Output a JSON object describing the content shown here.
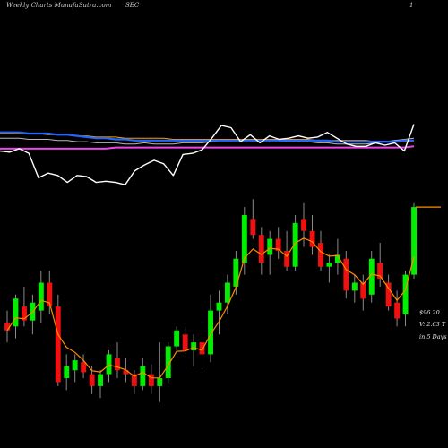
{
  "header": {
    "site": "Weekly Charts MunafaSutra.com",
    "ticker": "SEC",
    "period": "1"
  },
  "price_labels": {
    "price": "$96.20",
    "volume": "V: 2.63 Y",
    "days": "in 5 Days"
  },
  "colors": {
    "up": "#00ee00",
    "down": "#ee1111",
    "ema_short": "#ff8c00",
    "indicator_line": "#ffffff",
    "avg_blue": "#2266ff",
    "avg_magenta": "#ee44ee",
    "avg_orange": "#ffa000",
    "avg_grey": "#b8b8b8",
    "background": "#000000"
  },
  "chart_data": [
    {
      "type": "line",
      "title": "",
      "ylim": [
        0,
        100
      ],
      "series": [
        {
          "values": [
            55,
            54,
            57,
            53,
            32,
            36,
            34,
            28,
            34,
            33,
            28,
            29,
            28,
            26,
            38,
            43,
            47,
            44,
            34,
            52,
            53,
            56,
            66,
            77,
            75,
            63,
            69,
            62,
            68,
            65,
            66,
            68,
            66,
            67,
            71,
            66,
            61,
            59,
            59,
            62,
            60,
            62,
            55,
            78
          ]
        },
        {
          "values": [
            66,
            66,
            66,
            65,
            65,
            65,
            64,
            64,
            63,
            63,
            62,
            62,
            62,
            61,
            61,
            62,
            61,
            61,
            61,
            62,
            62,
            62,
            63,
            64,
            64,
            64,
            64,
            64,
            64,
            64,
            63,
            63,
            63,
            62,
            62,
            61,
            61,
            61,
            61,
            62,
            63,
            64,
            65,
            66
          ]
        },
        {
          "values": [
            57,
            57,
            57,
            57,
            57,
            57,
            57,
            57,
            57,
            57,
            57,
            57,
            58,
            58,
            58,
            58,
            58,
            58,
            58,
            58,
            58,
            58,
            58,
            58,
            58,
            58,
            58,
            58,
            58,
            58,
            58,
            58,
            58,
            58,
            58,
            58,
            58,
            58,
            58,
            58,
            58,
            58,
            58,
            59
          ]
        },
        {
          "values": [
            71,
            71,
            71,
            70,
            70,
            70,
            69,
            69,
            68,
            67,
            66,
            66,
            65,
            65,
            64,
            64,
            64,
            64,
            64,
            64,
            64,
            64,
            64,
            64,
            64,
            64,
            64,
            64,
            64,
            64,
            64,
            64,
            64,
            64,
            64,
            63,
            63,
            63,
            63,
            63,
            63,
            63,
            64,
            64
          ]
        },
        {
          "values": [
            70,
            70,
            70,
            70,
            70,
            69,
            69,
            69,
            68,
            68,
            67,
            67,
            67,
            66,
            66,
            66,
            66,
            66,
            65,
            65,
            65,
            65,
            65,
            65,
            65,
            65,
            65,
            65,
            65,
            65,
            65,
            65,
            65,
            64,
            64,
            64,
            64,
            64,
            64,
            63,
            63,
            63,
            63,
            63
          ]
        }
      ]
    },
    {
      "type": "candlestick",
      "title": "",
      "ylim": [
        0,
        100
      ],
      "candles": [
        [
          46,
          52,
          36,
          42
        ],
        [
          44,
          60,
          38,
          58
        ],
        [
          54,
          64,
          44,
          47
        ],
        [
          47,
          60,
          40,
          56
        ],
        [
          52,
          72,
          46,
          66
        ],
        [
          66,
          72,
          50,
          54
        ],
        [
          54,
          60,
          14,
          16
        ],
        [
          18,
          30,
          12,
          24
        ],
        [
          22,
          30,
          16,
          27
        ],
        [
          26,
          30,
          18,
          21
        ],
        [
          20,
          24,
          10,
          14
        ],
        [
          14,
          22,
          8,
          20
        ],
        [
          20,
          32,
          16,
          30
        ],
        [
          28,
          36,
          18,
          22
        ],
        [
          22,
          28,
          16,
          20
        ],
        [
          20,
          22,
          10,
          14
        ],
        [
          14,
          28,
          12,
          24
        ],
        [
          20,
          25,
          10,
          14
        ],
        [
          14,
          36,
          6,
          18
        ],
        [
          18,
          36,
          15,
          34
        ],
        [
          34,
          44,
          32,
          42
        ],
        [
          40,
          44,
          30,
          32
        ],
        [
          32,
          40,
          24,
          36
        ],
        [
          36,
          46,
          24,
          30
        ],
        [
          30,
          60,
          26,
          52
        ],
        [
          52,
          62,
          40,
          56
        ],
        [
          56,
          70,
          50,
          66
        ],
        [
          64,
          82,
          60,
          78
        ],
        [
          76,
          104,
          70,
          100
        ],
        [
          98,
          108,
          88,
          90
        ],
        [
          90,
          94,
          70,
          76
        ],
        [
          80,
          92,
          70,
          88
        ],
        [
          88,
          94,
          78,
          82
        ],
        [
          82,
          92,
          72,
          74
        ],
        [
          74,
          100,
          72,
          96
        ],
        [
          98,
          106,
          84,
          92
        ],
        [
          92,
          100,
          80,
          84
        ],
        [
          86,
          92,
          72,
          74
        ],
        [
          74,
          80,
          66,
          76
        ],
        [
          76,
          88,
          70,
          80
        ],
        [
          78,
          82,
          58,
          62
        ],
        [
          62,
          70,
          56,
          66
        ],
        [
          66,
          70,
          52,
          58
        ],
        [
          60,
          82,
          56,
          78
        ],
        [
          76,
          86,
          64,
          68
        ],
        [
          66,
          70,
          52,
          54
        ],
        [
          56,
          62,
          44,
          48
        ],
        [
          50,
          72,
          44,
          70
        ],
        [
          70,
          106,
          68,
          104
        ]
      ]
    }
  ]
}
